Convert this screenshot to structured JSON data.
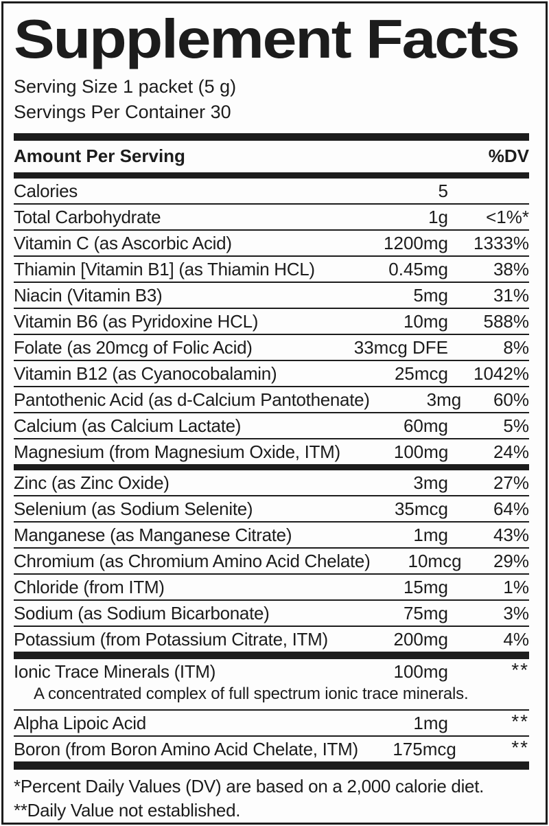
{
  "label": {
    "title": "Supplement Facts",
    "serving_size": "Serving Size 1 packet (5 g)",
    "servings_per_container": "Servings Per Container 30",
    "header": {
      "amount": "Amount Per Serving",
      "dv": "%DV"
    },
    "colors": {
      "ink": "#1c1c1c",
      "background": "#fdfdfd"
    },
    "table": {
      "sections": [
        {
          "rows": [
            {
              "label": "Calories",
              "amount": "5",
              "dv": ""
            },
            {
              "label": "Total Carbohydrate",
              "amount": "1g",
              "dv": "<1%*"
            },
            {
              "label": "Vitamin C (as Ascorbic Acid)",
              "amount": "1200mg",
              "dv": "1333%"
            },
            {
              "label": "Thiamin [Vitamin B1] (as Thiamin HCL)",
              "amount": "0.45mg",
              "dv": "38%"
            },
            {
              "label": "Niacin (Vitamin B3)",
              "amount": "5mg",
              "dv": "31%"
            },
            {
              "label": "Vitamin B6 (as Pyridoxine HCL)",
              "amount": "10mg",
              "dv": "588%"
            },
            {
              "label": "Folate (as 20mcg of Folic Acid)",
              "amount": "33mcg DFE",
              "dv": "8%"
            },
            {
              "label": "Vitamin B12 (as Cyanocobalamin)",
              "amount": "25mcg",
              "dv": "1042%"
            },
            {
              "label": "Pantothenic Acid (as d-Calcium Pantothenate)",
              "amount": "3mg",
              "dv": "60%"
            },
            {
              "label": "Calcium (as Calcium Lactate)",
              "amount": "60mg",
              "dv": "5%"
            },
            {
              "label": "Magnesium (from Magnesium Oxide, ITM)",
              "amount": "100mg",
              "dv": "24%"
            }
          ]
        },
        {
          "rows": [
            {
              "label": "Zinc (as Zinc Oxide)",
              "amount": "3mg",
              "dv": "27%"
            },
            {
              "label": "Selenium (as Sodium Selenite)",
              "amount": "35mcg",
              "dv": "64%"
            },
            {
              "label": "Manganese (as Manganese Citrate)",
              "amount": "1mg",
              "dv": "43%"
            },
            {
              "label": "Chromium (as Chromium Amino Acid Chelate)",
              "amount": "10mcg",
              "dv": "29%"
            },
            {
              "label": "Chloride (from ITM)",
              "amount": "15mg",
              "dv": "1%"
            },
            {
              "label": "Sodium (as Sodium Bicarbonate)",
              "amount": "75mg",
              "dv": "3%"
            },
            {
              "label": "Potassium (from Potassium Citrate, ITM)",
              "amount": "200mg",
              "dv": "4%"
            }
          ]
        },
        {
          "rows": [
            {
              "label": "Ionic Trace Minerals (ITM)",
              "amount": "100mg",
              "dv": "**",
              "dv_super": true,
              "note": "A concentrated complex of full spectrum ionic trace minerals."
            },
            {
              "label": "Alpha Lipoic Acid",
              "amount": "1mg",
              "dv": "**",
              "dv_super": true
            },
            {
              "label": "Boron (from Boron Amino Acid Chelate, ITM)",
              "amount": "175mcg",
              "dv": "**",
              "dv_super": true
            }
          ]
        }
      ]
    },
    "footnotes": [
      "*Percent Daily Values (DV) are based on a 2,000 calorie diet.",
      "**Daily Value not established."
    ]
  }
}
